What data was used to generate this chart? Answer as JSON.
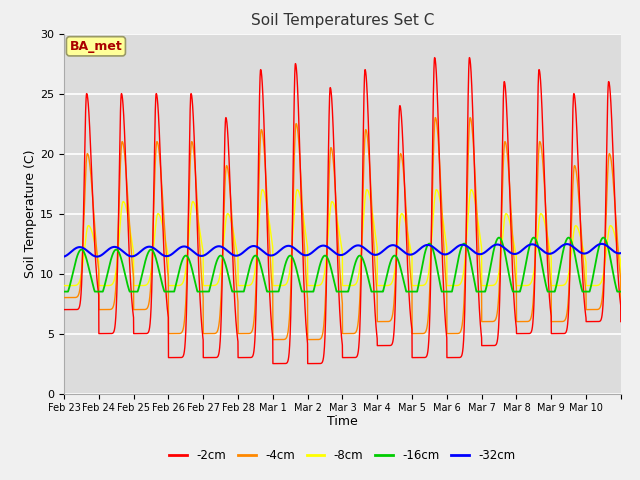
{
  "title": "Soil Temperatures Set C",
  "xlabel": "Time",
  "ylabel": "Soil Temperature (C)",
  "ylim": [
    0,
    30
  ],
  "annotation": "BA_met",
  "legend_labels": [
    "-2cm",
    "-4cm",
    "-8cm",
    "-16cm",
    "-32cm"
  ],
  "legend_colors": [
    "#ff0000",
    "#ff8800",
    "#ffff00",
    "#00cc00",
    "#0000ff"
  ],
  "bg_color": "#dcdcdc",
  "fig_bg_color": "#f0f0f0",
  "x_tick_labels": [
    "Feb 23",
    "Feb 24",
    "Feb 25",
    "Feb 26",
    "Feb 27",
    "Feb 28",
    "Mar 1",
    "Mar 2",
    "Mar 3",
    "Mar 4",
    "Mar 5",
    "Mar 6",
    "Mar 7",
    "Mar 8",
    "Mar 9",
    "Mar 10"
  ],
  "pts_per_day": 480,
  "n_days": 16
}
